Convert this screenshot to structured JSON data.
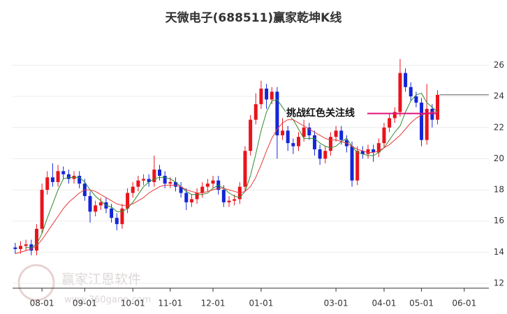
{
  "chart_data": {
    "type": "candlestick",
    "title": "天微电子(688511)赢家乾坤K线",
    "watermark": {
      "name": "赢家江恩软件",
      "url": "www.360gann.com"
    },
    "up_color": "#e8141c",
    "down_color": "#1426d8",
    "open": [
      14.3,
      14.2,
      14.4,
      14.5,
      14.1,
      15.5,
      18.0,
      18.8,
      18.5,
      19.2,
      19.0,
      18.7,
      18.9,
      18.4,
      17.6,
      16.6,
      17.0,
      17.2,
      16.8,
      16.2,
      15.8,
      16.8,
      17.8,
      18.2,
      18.6,
      18.7,
      18.5,
      19.3,
      18.9,
      18.4,
      18.5,
      18.2,
      17.8,
      17.2,
      17.4,
      17.8,
      18.2,
      18.4,
      18.6,
      18.0,
      17.2,
      17.3,
      17.4,
      18.2,
      20.5,
      22.5,
      23.5,
      24.5,
      23.8,
      24.3,
      21.5,
      21.8,
      21.0,
      20.8,
      21.4,
      22.0,
      21.5,
      20.6,
      20.0,
      20.5,
      21.4,
      21.8,
      21.2,
      20.8,
      18.6,
      20.5,
      20.3,
      20.6,
      20.4,
      21.0,
      22.0,
      22.6,
      23.0,
      25.5,
      24.6,
      24.0,
      23.6,
      21.2,
      23.2,
      22.5
    ],
    "high": [
      14.6,
      14.7,
      14.8,
      14.8,
      15.8,
      18.4,
      19.2,
      19.7,
      19.6,
      19.5,
      19.3,
      19.2,
      19.2,
      18.7,
      17.9,
      17.3,
      17.5,
      17.5,
      17.1,
      16.5,
      17.1,
      18.1,
      18.5,
      18.9,
      19.0,
      19.0,
      20.2,
      19.6,
      19.2,
      18.8,
      18.8,
      18.5,
      18.1,
      17.7,
      18.1,
      18.5,
      18.7,
      18.9,
      18.9,
      18.3,
      17.6,
      17.7,
      18.5,
      20.8,
      22.8,
      24.2,
      25.0,
      24.8,
      24.6,
      24.6,
      22.6,
      22.1,
      21.3,
      21.7,
      22.5,
      22.3,
      21.8,
      20.9,
      20.8,
      21.7,
      22.1,
      22.1,
      21.5,
      21.1,
      20.8,
      20.8,
      20.9,
      20.9,
      21.3,
      22.3,
      22.9,
      23.3,
      26.4,
      25.8,
      24.9,
      24.3,
      23.9,
      24.8,
      23.5,
      24.4
    ],
    "low": [
      13.9,
      13.9,
      14.1,
      13.8,
      13.8,
      15.2,
      17.7,
      18.2,
      18.2,
      18.7,
      18.4,
      18.4,
      18.1,
      17.3,
      15.9,
      16.3,
      16.7,
      16.5,
      15.9,
      15.4,
      15.5,
      16.5,
      17.5,
      17.9,
      18.3,
      18.2,
      18.2,
      18.6,
      18.1,
      18.1,
      17.9,
      17.5,
      16.7,
      16.9,
      17.1,
      17.5,
      17.9,
      18.1,
      17.7,
      16.9,
      16.9,
      17.0,
      17.1,
      17.9,
      20.2,
      22.2,
      23.2,
      23.2,
      23.5,
      20.0,
      21.2,
      20.5,
      20.3,
      20.5,
      21.1,
      21.2,
      20.2,
      19.6,
      19.7,
      20.2,
      21.1,
      20.9,
      20.4,
      18.2,
      18.3,
      20.0,
      20.0,
      19.8,
      20.1,
      20.7,
      21.7,
      22.3,
      22.7,
      24.3,
      23.7,
      23.3,
      20.8,
      20.9,
      22.0,
      22.2
    ],
    "close": [
      14.2,
      14.4,
      14.5,
      14.1,
      15.5,
      18.0,
      18.8,
      18.5,
      19.2,
      19.0,
      18.7,
      18.9,
      18.4,
      17.6,
      16.6,
      17.0,
      17.2,
      16.8,
      16.2,
      15.8,
      16.8,
      17.8,
      18.2,
      18.6,
      18.7,
      18.5,
      19.3,
      18.9,
      18.4,
      18.5,
      18.2,
      17.8,
      17.2,
      17.4,
      17.8,
      18.2,
      18.4,
      18.6,
      18.0,
      17.2,
      17.3,
      17.4,
      18.2,
      20.5,
      22.5,
      23.5,
      24.5,
      23.8,
      24.3,
      21.5,
      21.8,
      21.0,
      20.8,
      21.4,
      22.0,
      21.5,
      20.6,
      20.0,
      20.5,
      21.4,
      21.8,
      21.2,
      20.8,
      18.6,
      20.5,
      20.3,
      20.6,
      20.4,
      21.0,
      22.0,
      22.6,
      23.0,
      25.5,
      24.6,
      24.0,
      23.6,
      21.2,
      23.2,
      22.5,
      24.1
    ],
    "series": [
      {
        "color": "#2e8b2e",
        "values": [
          null,
          null,
          14.3,
          14.3,
          14.5,
          15.2,
          16.2,
          17.1,
          18.0,
          18.7,
          18.8,
          18.8,
          18.8,
          18.5,
          18.0,
          17.6,
          17.3,
          17.0,
          16.9,
          16.6,
          16.6,
          16.8,
          17.2,
          17.7,
          18.2,
          18.5,
          18.7,
          18.8,
          18.8,
          18.7,
          18.5,
          18.2,
          17.9,
          17.7,
          17.7,
          17.7,
          17.8,
          18.1,
          18.3,
          18.1,
          17.8,
          17.6,
          17.5,
          17.9,
          18.9,
          20.3,
          21.8,
          23.0,
          23.7,
          23.8,
          23.3,
          22.8,
          22.5,
          21.9,
          21.3,
          21.3,
          21.3,
          21.0,
          20.8,
          20.7,
          20.8,
          21.1,
          21.3,
          20.8,
          20.4,
          20.3,
          20.2,
          20.2,
          20.4,
          20.7,
          21.2,
          21.7,
          22.1,
          23.0,
          23.7,
          24.1,
          24.2,
          23.6,
          23.3,
          23.0
        ]
      },
      {
        "color": "#e83a3a",
        "values": [
          13.9,
          14.0,
          14.1,
          14.2,
          14.4,
          14.8,
          15.3,
          15.8,
          16.3,
          16.8,
          17.2,
          17.5,
          17.8,
          18.0,
          18.0,
          17.9,
          17.7,
          17.5,
          17.3,
          17.1,
          17.0,
          17.0,
          17.1,
          17.3,
          17.5,
          17.8,
          18.0,
          18.2,
          18.3,
          18.3,
          18.3,
          18.2,
          18.0,
          17.9,
          17.8,
          17.8,
          17.9,
          18.0,
          18.1,
          18.1,
          18.0,
          17.9,
          17.8,
          17.9,
          18.2,
          18.8,
          19.6,
          20.5,
          21.3,
          21.9,
          22.3,
          22.5,
          22.5,
          22.3,
          22.1,
          21.9,
          21.7,
          21.5,
          21.3,
          21.2,
          21.2,
          21.1,
          21.0,
          20.8,
          20.6,
          20.5,
          20.4,
          20.4,
          20.5,
          20.7,
          20.9,
          21.2,
          21.5,
          21.9,
          22.3,
          22.6,
          22.8,
          22.9,
          23.0,
          23.0
        ]
      }
    ],
    "annotation": {
      "text": "挑战红色关注线",
      "value": 22.9,
      "color": "#e0147a"
    },
    "xlim": [
      -0.5,
      88.6
    ],
    "xticks": [
      {
        "value": 5,
        "label": "08-01"
      },
      {
        "value": 13,
        "label": "09-01"
      },
      {
        "value": 22,
        "label": "10-01"
      },
      {
        "value": 29,
        "label": "11-01"
      },
      {
        "value": 37,
        "label": "12-01"
      },
      {
        "value": 46,
        "label": "01-01"
      },
      {
        "value": 60,
        "label": "03-01"
      },
      {
        "value": 69,
        "label": "04-01"
      },
      {
        "value": 76,
        "label": "05-01"
      },
      {
        "value": 84,
        "label": "06-01"
      }
    ],
    "ylim": [
      12,
      27.5
    ],
    "yticks": [
      12,
      14,
      16,
      18,
      20,
      22,
      24,
      26
    ],
    "grid": true
  }
}
